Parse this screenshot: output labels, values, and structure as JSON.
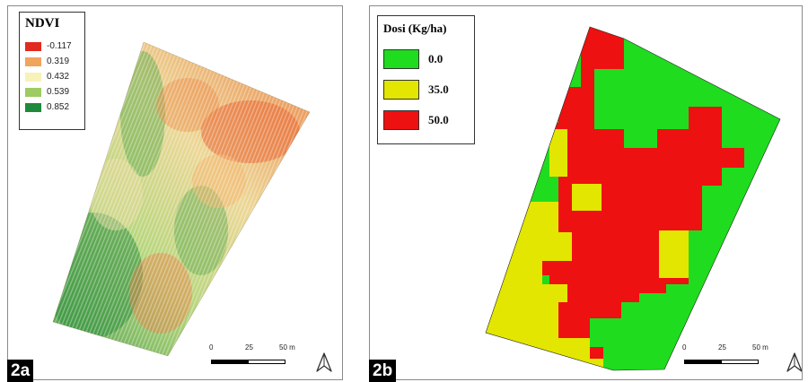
{
  "panel_a": {
    "label": "2a",
    "legend": {
      "title": "NDVI",
      "items": [
        {
          "value": "-0.117",
          "color": "#e02b1e"
        },
        {
          "value": "0.319",
          "color": "#f0a45c"
        },
        {
          "value": "0.432",
          "color": "#f7f2b8"
        },
        {
          "value": "0.539",
          "color": "#9ccc62"
        },
        {
          "value": "0.852",
          "color": "#1f8a3c"
        }
      ]
    },
    "scale": {
      "ticks": [
        "0",
        "25",
        "50 m"
      ]
    },
    "north_icon": "north-arrow-icon"
  },
  "panel_b": {
    "label": "2b",
    "legend": {
      "title": "Dosi (Kg/ha)",
      "items": [
        {
          "value": "0.0",
          "color": "#1fdc1f"
        },
        {
          "value": "35.0",
          "color": "#e3e600"
        },
        {
          "value": "50.0",
          "color": "#ee1111"
        }
      ]
    },
    "scale": {
      "ticks": [
        "0",
        "25",
        "50 m"
      ]
    },
    "north_icon": "north-arrow-icon"
  }
}
